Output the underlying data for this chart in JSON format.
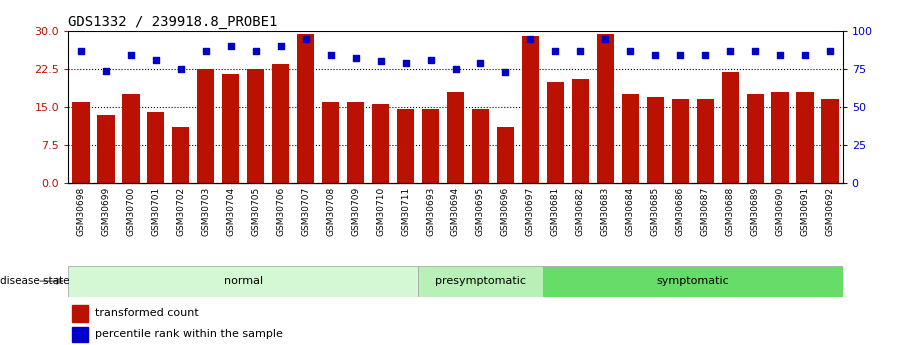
{
  "title": "GDS1332 / 239918.8_PROBE1",
  "samples": [
    "GSM30698",
    "GSM30699",
    "GSM30700",
    "GSM30701",
    "GSM30702",
    "GSM30703",
    "GSM30704",
    "GSM30705",
    "GSM30706",
    "GSM30707",
    "GSM30708",
    "GSM30709",
    "GSM30710",
    "GSM30711",
    "GSM30693",
    "GSM30694",
    "GSM30695",
    "GSM30696",
    "GSM30697",
    "GSM30681",
    "GSM30682",
    "GSM30683",
    "GSM30684",
    "GSM30685",
    "GSM30686",
    "GSM30687",
    "GSM30688",
    "GSM30689",
    "GSM30690",
    "GSM30691",
    "GSM30692"
  ],
  "bar_values": [
    16.0,
    13.5,
    17.5,
    14.0,
    11.0,
    22.5,
    21.5,
    22.5,
    23.5,
    29.5,
    16.0,
    16.0,
    15.5,
    14.5,
    14.5,
    18.0,
    14.5,
    11.0,
    29.0,
    20.0,
    20.5,
    29.5,
    17.5,
    17.0,
    16.5,
    16.5,
    22.0,
    17.5,
    18.0,
    18.0,
    16.5
  ],
  "percentile_values": [
    87,
    74,
    84,
    81,
    75,
    87,
    90,
    87,
    90,
    95,
    84,
    82,
    80,
    79,
    81,
    75,
    79,
    73,
    95,
    87,
    87,
    95,
    87,
    84,
    84,
    84,
    87,
    87,
    84,
    84,
    87
  ],
  "group_info": [
    {
      "start": 0,
      "end": 13,
      "color": "#d4f7d4",
      "name": "normal"
    },
    {
      "start": 14,
      "end": 18,
      "color": "#b8f0b8",
      "name": "presymptomatic"
    },
    {
      "start": 19,
      "end": 30,
      "color": "#66dd66",
      "name": "symptomatic"
    }
  ],
  "bar_color": "#bb1100",
  "dot_color": "#0000cc",
  "ylim_left": [
    0,
    30
  ],
  "ylim_right": [
    0,
    100
  ],
  "yticks_left": [
    0,
    7.5,
    15,
    22.5,
    30
  ],
  "yticks_right": [
    0,
    25,
    50,
    75,
    100
  ],
  "grid_values": [
    7.5,
    15,
    22.5
  ],
  "title_fontsize": 10,
  "label_fontsize": 7
}
